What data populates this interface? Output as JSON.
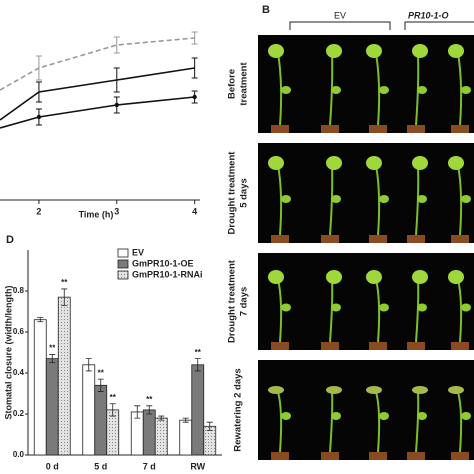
{
  "panel_a": {
    "chart_data": {
      "type": "line",
      "xlabel": "Time (h)",
      "x": [
        1.5,
        2,
        3,
        4
      ],
      "xlim": [
        1.5,
        4.3
      ],
      "xticks": [
        2,
        3,
        4
      ],
      "ylim": [
        0,
        100
      ],
      "series": [
        {
          "name": "GmPR10-1-RNAi",
          "color": "#999999",
          "dash": true,
          "values": [
            55,
            66,
            77.5,
            81
          ],
          "errors": [
            5,
            6,
            4,
            3
          ]
        },
        {
          "name": "EV",
          "color": "#111111",
          "dash": false,
          "values": [
            40,
            54,
            60,
            66
          ],
          "errors": [
            4,
            5,
            6,
            5
          ]
        },
        {
          "name": "GmPR10-1-OE",
          "color": "#111111",
          "dash": false,
          "markers": true,
          "values": [
            36,
            41.5,
            47.5,
            51.5
          ],
          "errors": [
            3,
            4,
            4,
            3
          ]
        }
      ]
    }
  },
  "panel_b": {
    "letter": "B",
    "groups": [
      "EV",
      "PR10-1-O"
    ],
    "rows": [
      [
        "Before",
        "treatment"
      ],
      [
        "Drought treatment",
        "5 days"
      ],
      [
        "Drought treatment",
        "7 days"
      ],
      [
        "Rewatering 2 days"
      ]
    ]
  },
  "chart_data": {
    "type": "bar",
    "letter": "D",
    "ylabel": "Stomatal closure (width/length)",
    "categories": [
      "0 d",
      "5 d",
      "7 d",
      "RW"
    ],
    "ylim": [
      0,
      1.0
    ],
    "yticks": [
      {
        "value": 0,
        "label": "0.0"
      },
      0.2,
      0.4,
      0.6,
      0.8
    ],
    "legend": "top-right",
    "series": [
      {
        "name": "EV",
        "color": "#ffffff",
        "values": [
          0.66,
          0.44,
          0.21,
          0.17
        ],
        "errors": [
          0.01,
          0.03,
          0.03,
          0.01
        ],
        "annotations": [
          null,
          null,
          null,
          null
        ]
      },
      {
        "name": "GmPR10-1-OE",
        "color": "#7a7a7a",
        "values": [
          0.47,
          0.34,
          0.22,
          0.44
        ],
        "errors": [
          0.02,
          0.03,
          0.02,
          0.03
        ],
        "annotations": [
          "**",
          "**",
          "**",
          "**"
        ]
      },
      {
        "name": "GmPR10-1-RNAi",
        "color": "#d8d8d8",
        "pattern": true,
        "values": [
          0.77,
          0.22,
          0.18,
          0.14
        ],
        "errors": [
          0.04,
          0.03,
          0.01,
          0.02
        ],
        "annotations": [
          "**",
          "**",
          null,
          null
        ]
      }
    ]
  }
}
